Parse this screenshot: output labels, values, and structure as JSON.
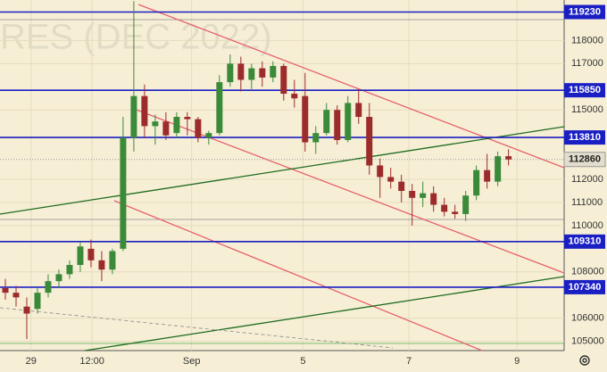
{
  "chart_data": {
    "type": "candlestick",
    "watermark": "RES (DEC 2022)",
    "xlim": [
      -0.5,
      52.2
    ],
    "xticks": [
      {
        "value": 2.4,
        "label": "29"
      },
      {
        "value": 8.1,
        "label": "12:00"
      },
      {
        "value": 17.4,
        "label": "Sep"
      },
      {
        "value": 27.8,
        "label": "5"
      },
      {
        "value": 37.7,
        "label": "7"
      },
      {
        "value": 47.8,
        "label": "9"
      }
    ],
    "ylim": [
      104600,
      119750
    ],
    "yticks": [
      105000,
      106000,
      108000,
      110000,
      111000,
      112000,
      115000,
      117000,
      118000
    ],
    "grid": true,
    "up_color": "#3a8a3a",
    "down_color": "#9c2b2b",
    "level_color": "#1a1fc4",
    "levels": [
      119230,
      115850,
      113810,
      109310,
      107340
    ],
    "last_price": 112860,
    "open": [
      107300,
      107100,
      106500,
      106400,
      107100,
      107600,
      107900,
      108300,
      109000,
      108500,
      108100,
      109000,
      113800,
      115600,
      114300,
      114500,
      114000,
      114700,
      114600,
      113800,
      114000,
      116200,
      117000,
      116300,
      116800,
      116400,
      116900,
      115700,
      115600,
      113600,
      114000,
      115000,
      113700,
      115300,
      114700,
      112600,
      112100,
      111900,
      111500,
      111200,
      111400,
      110900,
      110600,
      110500,
      111300,
      112400,
      111900,
      113000
    ],
    "high": [
      107700,
      107400,
      106900,
      107300,
      107900,
      108100,
      108500,
      109300,
      109400,
      108900,
      109000,
      114700,
      119700,
      116100,
      114800,
      114900,
      114900,
      114900,
      114700,
      114100,
      116500,
      117400,
      117300,
      117000,
      117100,
      117100,
      117000,
      116300,
      116600,
      114300,
      115300,
      115200,
      115600,
      115900,
      115300,
      112900,
      112500,
      112200,
      111800,
      111900,
      111700,
      111200,
      110900,
      111500,
      112600,
      113100,
      113200,
      113300
    ],
    "low": [
      106800,
      106500,
      105100,
      106200,
      106900,
      107300,
      107700,
      108000,
      108200,
      107600,
      107900,
      108900,
      113200,
      113800,
      113500,
      113700,
      113800,
      113900,
      113600,
      113500,
      113900,
      116000,
      115800,
      115900,
      116000,
      116200,
      115400,
      115100,
      113200,
      113100,
      113900,
      113500,
      113600,
      114400,
      112200,
      111200,
      111600,
      111000,
      110000,
      110800,
      110600,
      110400,
      110300,
      110200,
      111100,
      111600,
      111700,
      112600
    ],
    "close": [
      107100,
      106900,
      106200,
      107100,
      107600,
      107900,
      108300,
      109100,
      108500,
      108100,
      108900,
      113800,
      115600,
      114300,
      114500,
      113900,
      114700,
      114600,
      113800,
      114000,
      116200,
      117000,
      116300,
      116800,
      116400,
      116900,
      115700,
      115500,
      113600,
      114000,
      115000,
      113700,
      115300,
      114700,
      112600,
      112100,
      111900,
      111500,
      111200,
      111400,
      110900,
      110600,
      110500,
      111300,
      112400,
      111900,
      113000,
      112860
    ]
  }
}
